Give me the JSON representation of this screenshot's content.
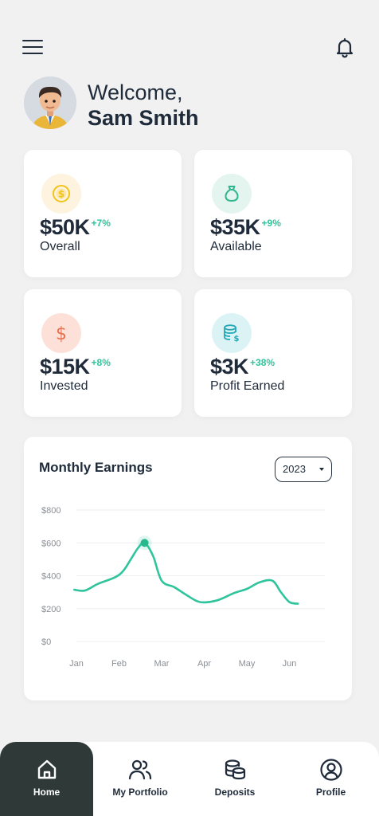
{
  "header": {
    "menu_icon": "hamburger-menu-icon",
    "notification_icon": "bell-icon"
  },
  "welcome": {
    "greeting": "Welcome,",
    "name": "Sam Smith"
  },
  "stats": [
    {
      "value": "$50K",
      "change": "+7%",
      "label": "Overall",
      "icon": "dollar-coin-icon",
      "icon_color": "#f3c318",
      "icon_bg": "#fdf3df"
    },
    {
      "value": "$35K",
      "change": "+9%",
      "label": "Available",
      "icon": "money-bag-icon",
      "icon_color": "#2fb58d",
      "icon_bg": "#e3f5ee"
    },
    {
      "value": "$15K",
      "change": "+8%",
      "label": "Invested",
      "icon": "dollar-sign-icon",
      "icon_color": "#e6714f",
      "icon_bg": "#fde1d9"
    },
    {
      "value": "$3K",
      "change": "+38%",
      "label": "Profit Earned",
      "icon": "coins-database-icon",
      "icon_color": "#25a8b6",
      "icon_bg": "#dcf3f6"
    }
  ],
  "earnings": {
    "title": "Monthly Earnings",
    "year": "2023"
  },
  "chart_data": {
    "type": "line",
    "title": "Monthly Earnings",
    "categories": [
      "Jan",
      "Feb",
      "Mar",
      "Apr",
      "May",
      "Jun"
    ],
    "ytick_labels": [
      "$800",
      "$600",
      "$400",
      "$200",
      "$0"
    ],
    "ylim": [
      0,
      800
    ],
    "line_color": "#2fc49c",
    "highlight_point": {
      "x": 1.6,
      "y": 600
    },
    "series": [
      {
        "x": [
          -0.05,
          0.2,
          0.5,
          0.9,
          1.1,
          1.3,
          1.45,
          1.6,
          1.8,
          2.0,
          2.3,
          2.6,
          2.9,
          3.3,
          3.7,
          4.0,
          4.3,
          4.6,
          4.8,
          5.0,
          5.2
        ],
        "values": [
          315,
          310,
          350,
          390,
          430,
          510,
          570,
          600,
          520,
          370,
          330,
          280,
          240,
          250,
          295,
          320,
          360,
          370,
          300,
          240,
          230
        ]
      }
    ]
  },
  "nav": [
    {
      "label": "Home",
      "icon": "home-icon",
      "active": true
    },
    {
      "label": "My Portfolio",
      "icon": "users-icon",
      "active": false
    },
    {
      "label": "Deposits",
      "icon": "coins-icon",
      "active": false
    },
    {
      "label": "Profile",
      "icon": "profile-icon",
      "active": false
    }
  ]
}
